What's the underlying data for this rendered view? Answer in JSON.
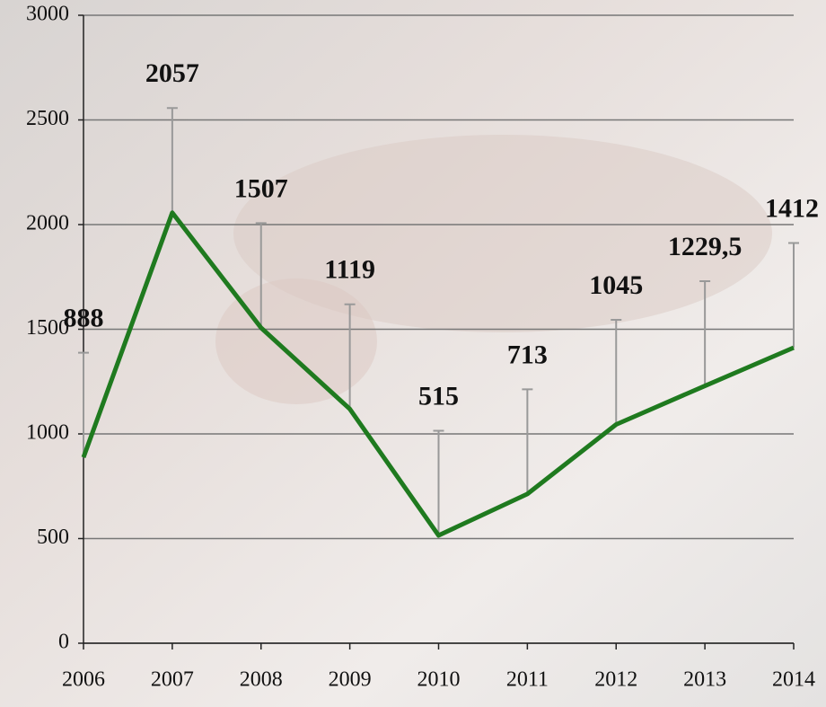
{
  "chart_data": {
    "type": "line",
    "categories": [
      "2006",
      "2007",
      "2008",
      "2009",
      "2010",
      "2011",
      "2012",
      "2013",
      "2014"
    ],
    "values": [
      888,
      2057,
      1507,
      1119,
      515,
      713,
      1045,
      1229.5,
      1412
    ],
    "value_labels": [
      "888",
      "2057",
      "1507",
      "1119",
      "515",
      "713",
      "1045",
      "1229,5",
      "1412"
    ],
    "errors": [
      500,
      500,
      500,
      500,
      500,
      500,
      500,
      500,
      500
    ],
    "color": "#1f7a1f",
    "ylim": [
      0,
      3000
    ],
    "yticks": [
      0,
      500,
      1000,
      1500,
      2000,
      2500,
      3000
    ],
    "grid": true
  }
}
